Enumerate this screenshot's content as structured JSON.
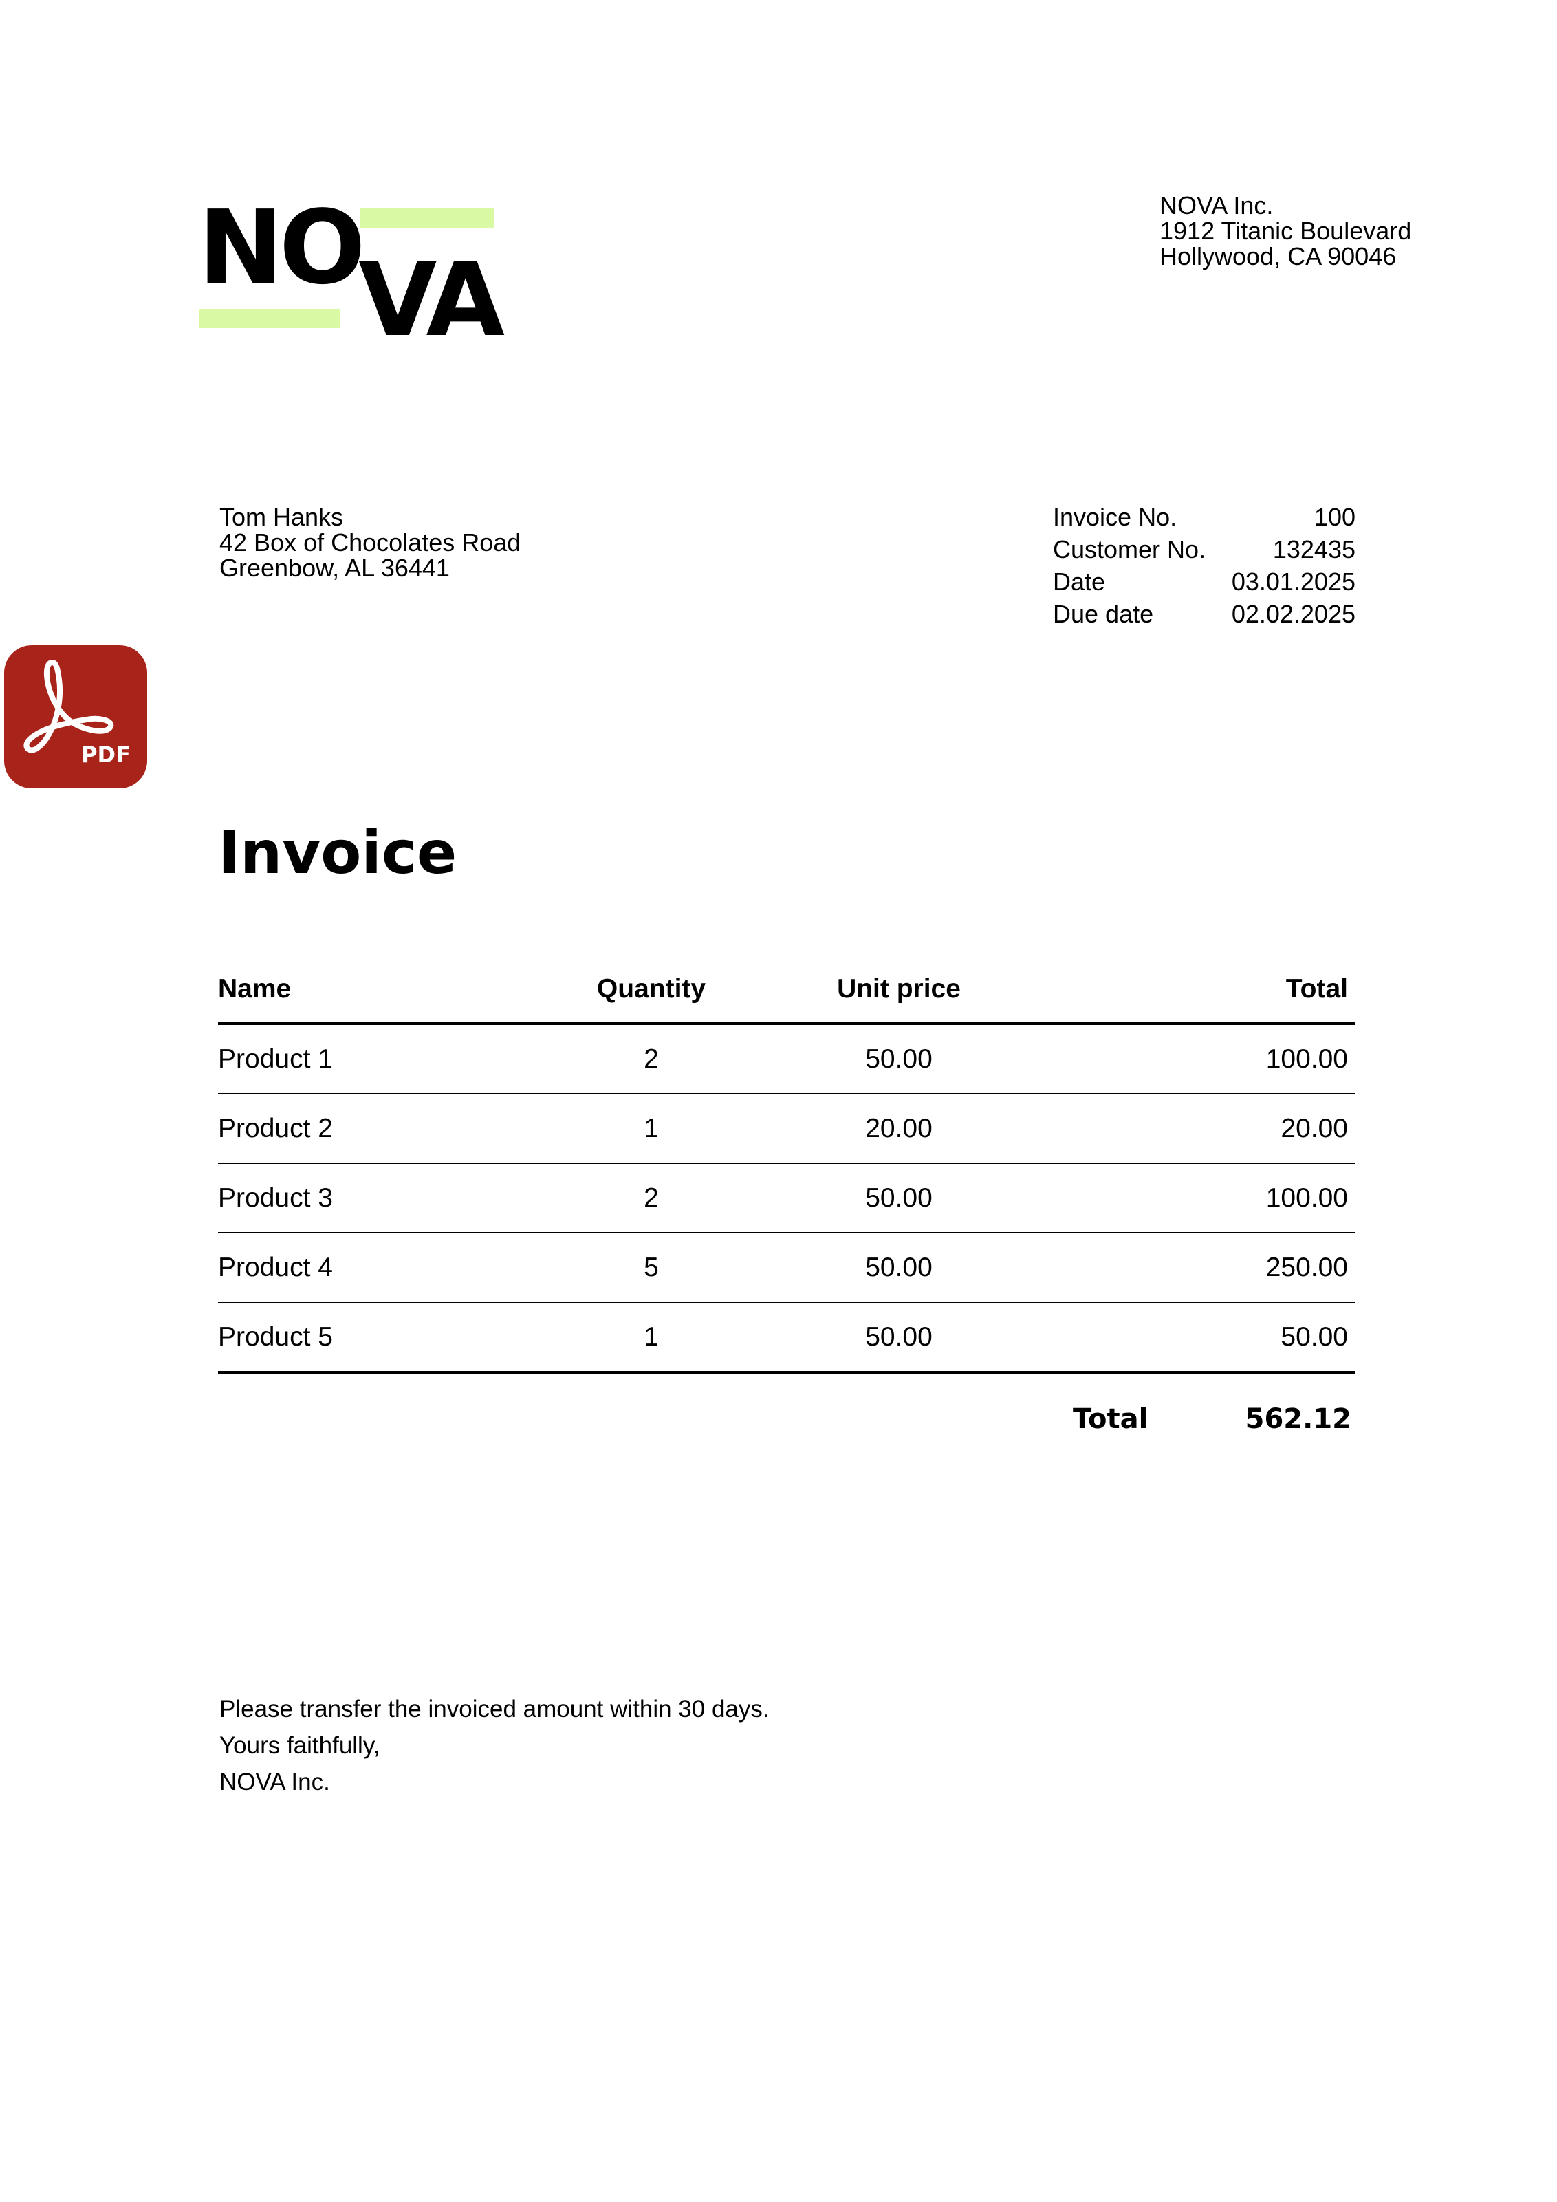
{
  "logo": {
    "text_top": "NO",
    "text_bottom": "VA",
    "accent_color": "#d9f9a4"
  },
  "company": {
    "lines": [
      "NOVA Inc.",
      "1912 Titanic Boulevard",
      "Hollywood, CA 90046"
    ]
  },
  "recipient": {
    "lines": [
      "Tom Hanks",
      "42 Box of Chocolates Road",
      "Greenbow, AL 36441"
    ]
  },
  "meta": [
    {
      "label": "Invoice No.",
      "value": "100"
    },
    {
      "label": "Customer No.",
      "value": "132435"
    },
    {
      "label": "Date",
      "value": "03.01.2025"
    },
    {
      "label": "Due date",
      "value": "02.02.2025"
    }
  ],
  "pdf_badge": {
    "icon": "adobe-pdf-icon",
    "label": "PDF",
    "color": "#a8231a"
  },
  "title": "Invoice",
  "table": {
    "headers": [
      "Name",
      "Quantity",
      "Unit price",
      "Total"
    ],
    "rows": [
      [
        "Product 1",
        "2",
        "50.00",
        "100.00"
      ],
      [
        "Product 2",
        "1",
        "20.00",
        "20.00"
      ],
      [
        "Product 3",
        "2",
        "50.00",
        "100.00"
      ],
      [
        "Product 4",
        "5",
        "50.00",
        "250.00"
      ],
      [
        "Product 5",
        "1",
        "50.00",
        "50.00"
      ]
    ]
  },
  "total": {
    "label": "Total",
    "value": "562.12"
  },
  "footer": {
    "lines": [
      "Please transfer the invoiced amount within 30 days.",
      "Yours faithfully,",
      "NOVA Inc."
    ]
  }
}
